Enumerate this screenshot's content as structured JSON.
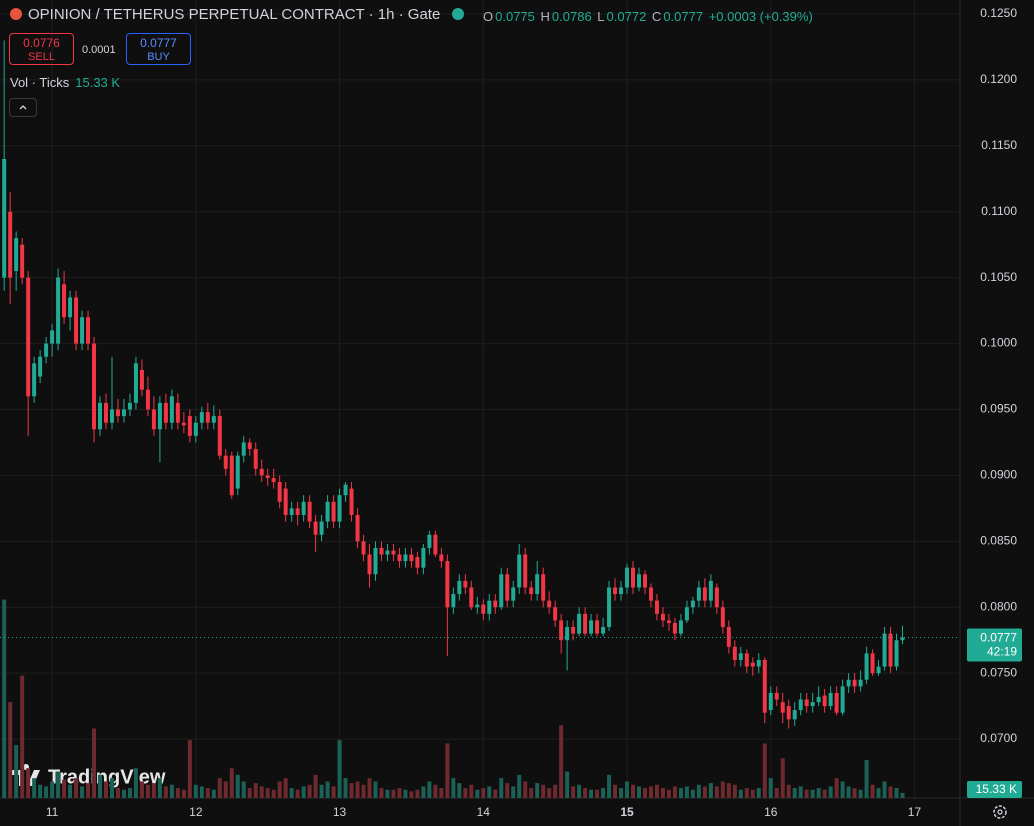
{
  "header": {
    "title": "OPINION / TETHERUS PERPETUAL CONTRACT · 1h · Gate",
    "ohlc": [
      {
        "key": "O",
        "value": "0.0775"
      },
      {
        "key": "H",
        "value": "0.0786"
      },
      {
        "key": "L",
        "value": "0.0772"
      },
      {
        "key": "C",
        "value": "0.0777"
      }
    ],
    "change": "+0.0003 (+0.39%)",
    "sell": {
      "price": "0.0776",
      "label": "SELL"
    },
    "spread": "0.0001",
    "buy": {
      "price": "0.0777",
      "label": "BUY"
    },
    "volume_legend": "Vol · Ticks"
  },
  "chart_data": {
    "type": "candlestick",
    "up_color": "#22ab94",
    "down_color": "#f23645",
    "volume_up_color": "#1c6157",
    "volume_down_color": "#6e2a2f",
    "grid": true,
    "xlim": [
      255.3,
      415.6
    ],
    "xticks": [
      {
        "value": 264,
        "label": "11"
      },
      {
        "value": 288,
        "label": "12"
      },
      {
        "value": 312,
        "label": "13"
      },
      {
        "value": 336,
        "label": "14"
      },
      {
        "value": 360,
        "label": "15"
      },
      {
        "value": 384,
        "label": "16"
      },
      {
        "value": 408,
        "label": "17"
      }
    ],
    "ylim": [
      0.06553,
      0.12606
    ],
    "yticks": [
      {
        "value": 0.07,
        "label": "0.0700"
      },
      {
        "value": 0.075,
        "label": "0.0750"
      },
      {
        "value": 0.08,
        "label": "0.0800"
      },
      {
        "value": 0.085,
        "label": "0.0850"
      },
      {
        "value": 0.09,
        "label": "0.0900"
      },
      {
        "value": 0.095,
        "label": "0.0950"
      },
      {
        "value": 0.1,
        "label": "0.1000"
      },
      {
        "value": 0.105,
        "label": "0.1050"
      },
      {
        "value": 0.11,
        "label": "0.1100"
      },
      {
        "value": 0.115,
        "label": "0.1150"
      },
      {
        "value": 0.12,
        "label": "0.1200"
      },
      {
        "value": 0.125,
        "label": "0.1250"
      }
    ],
    "volume_lim": [
      0,
      780000
    ],
    "last_price_label": "0.0777",
    "countdown": "42:19",
    "last_volume_label": "15.33 K",
    "watermark": "TradingView",
    "x": [
      256,
      257,
      258,
      259,
      260,
      261,
      262,
      263,
      264,
      265,
      266,
      267,
      268,
      269,
      270,
      271,
      272,
      273,
      274,
      275,
      276,
      277,
      278,
      279,
      280,
      281,
      282,
      283,
      284,
      285,
      286,
      287,
      288,
      289,
      290,
      291,
      292,
      293,
      294,
      295,
      296,
      297,
      298,
      299,
      300,
      301,
      302,
      303,
      304,
      305,
      306,
      307,
      308,
      309,
      310,
      311,
      312,
      313,
      314,
      315,
      316,
      317,
      318,
      319,
      320,
      321,
      322,
      323,
      324,
      325,
      326,
      327,
      328,
      329,
      330,
      331,
      332,
      333,
      334,
      335,
      336,
      337,
      338,
      339,
      340,
      341,
      342,
      343,
      344,
      345,
      346,
      347,
      348,
      349,
      350,
      351,
      352,
      353,
      354,
      355,
      356,
      357,
      358,
      359,
      360,
      361,
      362,
      363,
      364,
      365,
      366,
      367,
      368,
      369,
      370,
      371,
      372,
      373,
      374,
      375,
      376,
      377,
      378,
      379,
      380,
      381,
      382,
      383,
      384,
      385,
      386,
      387,
      388,
      389,
      390,
      391,
      392,
      393,
      394,
      395,
      396,
      397,
      398,
      399,
      400,
      401,
      402,
      403,
      404,
      405,
      406
    ],
    "ohlcv": [
      [
        0.105,
        0.123,
        0.104,
        0.114,
        600000
      ],
      [
        0.11,
        0.1115,
        0.103,
        0.105,
        290000
      ],
      [
        0.1055,
        0.1085,
        0.104,
        0.108,
        160000
      ],
      [
        0.1075,
        0.108,
        0.1045,
        0.105,
        370000
      ],
      [
        0.105,
        0.1055,
        0.093,
        0.096,
        90000
      ],
      [
        0.096,
        0.099,
        0.0955,
        0.0985,
        60000
      ],
      [
        0.0975,
        0.0995,
        0.097,
        0.099,
        40000
      ],
      [
        0.099,
        0.1005,
        0.0985,
        0.1,
        35000
      ],
      [
        0.1,
        0.1015,
        0.099,
        0.101,
        50000
      ],
      [
        0.1,
        0.1057,
        0.0995,
        0.105,
        80000
      ],
      [
        0.1045,
        0.1055,
        0.1015,
        0.102,
        55000
      ],
      [
        0.102,
        0.104,
        0.101,
        0.1035,
        40000
      ],
      [
        0.1035,
        0.104,
        0.0995,
        0.1,
        60000
      ],
      [
        0.1,
        0.1025,
        0.0995,
        0.102,
        35000
      ],
      [
        0.102,
        0.1025,
        0.0995,
        0.1,
        45000
      ],
      [
        0.1,
        0.1005,
        0.0925,
        0.0935,
        210000
      ],
      [
        0.0935,
        0.096,
        0.093,
        0.0955,
        70000
      ],
      [
        0.0955,
        0.0962,
        0.0935,
        0.094,
        50000
      ],
      [
        0.094,
        0.099,
        0.0935,
        0.095,
        60000
      ],
      [
        0.095,
        0.0958,
        0.094,
        0.0945,
        30000
      ],
      [
        0.0945,
        0.0958,
        0.094,
        0.095,
        25000
      ],
      [
        0.095,
        0.0962,
        0.0945,
        0.0955,
        30000
      ],
      [
        0.0955,
        0.099,
        0.095,
        0.0985,
        90000
      ],
      [
        0.098,
        0.0988,
        0.096,
        0.0965,
        50000
      ],
      [
        0.0965,
        0.0975,
        0.0945,
        0.095,
        40000
      ],
      [
        0.095,
        0.096,
        0.093,
        0.0935,
        45000
      ],
      [
        0.0935,
        0.096,
        0.091,
        0.0955,
        60000
      ],
      [
        0.0955,
        0.0962,
        0.0935,
        0.094,
        35000
      ],
      [
        0.094,
        0.0965,
        0.0935,
        0.096,
        40000
      ],
      [
        0.0955,
        0.0962,
        0.0935,
        0.094,
        30000
      ],
      [
        0.094,
        0.0948,
        0.0932,
        0.0938,
        25000
      ],
      [
        0.0945,
        0.095,
        0.0925,
        0.093,
        175000
      ],
      [
        0.093,
        0.0945,
        0.0925,
        0.094,
        40000
      ],
      [
        0.094,
        0.0952,
        0.0935,
        0.0948,
        35000
      ],
      [
        0.0948,
        0.0955,
        0.0935,
        0.094,
        30000
      ],
      [
        0.094,
        0.0953,
        0.0935,
        0.0945,
        25000
      ],
      [
        0.0945,
        0.095,
        0.0912,
        0.0915,
        60000
      ],
      [
        0.0915,
        0.092,
        0.09,
        0.0905,
        50000
      ],
      [
        0.0915,
        0.0918,
        0.0882,
        0.0885,
        90000
      ],
      [
        0.089,
        0.0918,
        0.0885,
        0.0915,
        70000
      ],
      [
        0.0915,
        0.093,
        0.091,
        0.0925,
        50000
      ],
      [
        0.0925,
        0.0928,
        0.0915,
        0.092,
        30000
      ],
      [
        0.092,
        0.0925,
        0.09,
        0.0905,
        45000
      ],
      [
        0.0905,
        0.0912,
        0.0895,
        0.09,
        35000
      ],
      [
        0.09,
        0.0905,
        0.0892,
        0.0898,
        30000
      ],
      [
        0.0898,
        0.0905,
        0.089,
        0.0895,
        25000
      ],
      [
        0.0895,
        0.09,
        0.0875,
        0.088,
        50000
      ],
      [
        0.089,
        0.0895,
        0.0865,
        0.087,
        60000
      ],
      [
        0.087,
        0.088,
        0.0865,
        0.0875,
        30000
      ],
      [
        0.0875,
        0.088,
        0.0862,
        0.087,
        25000
      ],
      [
        0.087,
        0.0885,
        0.0865,
        0.088,
        35000
      ],
      [
        0.088,
        0.0885,
        0.086,
        0.0865,
        40000
      ],
      [
        0.0865,
        0.087,
        0.0842,
        0.0855,
        70000
      ],
      [
        0.0855,
        0.087,
        0.085,
        0.0865,
        40000
      ],
      [
        0.0865,
        0.0885,
        0.086,
        0.088,
        50000
      ],
      [
        0.088,
        0.0885,
        0.086,
        0.0865,
        35000
      ],
      [
        0.0865,
        0.089,
        0.086,
        0.0885,
        175000
      ],
      [
        0.0885,
        0.0895,
        0.088,
        0.0893,
        60000
      ],
      [
        0.089,
        0.0895,
        0.0865,
        0.087,
        45000
      ],
      [
        0.087,
        0.0875,
        0.0845,
        0.085,
        50000
      ],
      [
        0.085,
        0.0855,
        0.0835,
        0.084,
        40000
      ],
      [
        0.084,
        0.0848,
        0.0815,
        0.0825,
        60000
      ],
      [
        0.0825,
        0.085,
        0.082,
        0.0845,
        50000
      ],
      [
        0.0845,
        0.085,
        0.0835,
        0.084,
        30000
      ],
      [
        0.084,
        0.0848,
        0.0835,
        0.0843,
        25000
      ],
      [
        0.0843,
        0.0848,
        0.0835,
        0.084,
        25000
      ],
      [
        0.084,
        0.0845,
        0.083,
        0.0835,
        30000
      ],
      [
        0.0835,
        0.0845,
        0.083,
        0.084,
        25000
      ],
      [
        0.084,
        0.0845,
        0.083,
        0.0835,
        20000
      ],
      [
        0.0838,
        0.0842,
        0.0825,
        0.083,
        25000
      ],
      [
        0.083,
        0.0848,
        0.0825,
        0.0845,
        35000
      ],
      [
        0.0845,
        0.0858,
        0.084,
        0.0855,
        50000
      ],
      [
        0.0855,
        0.0858,
        0.0838,
        0.084,
        40000
      ],
      [
        0.084,
        0.0845,
        0.083,
        0.0835,
        30000
      ],
      [
        0.0835,
        0.084,
        0.0763,
        0.08,
        165000
      ],
      [
        0.08,
        0.0815,
        0.0795,
        0.081,
        60000
      ],
      [
        0.081,
        0.0825,
        0.0805,
        0.082,
        45000
      ],
      [
        0.082,
        0.0825,
        0.081,
        0.0815,
        30000
      ],
      [
        0.0815,
        0.082,
        0.0798,
        0.08,
        40000
      ],
      [
        0.08,
        0.0808,
        0.0795,
        0.0802,
        25000
      ],
      [
        0.0802,
        0.0806,
        0.079,
        0.0795,
        30000
      ],
      [
        0.0795,
        0.081,
        0.079,
        0.0805,
        35000
      ],
      [
        0.0805,
        0.081,
        0.0795,
        0.08,
        25000
      ],
      [
        0.08,
        0.083,
        0.0798,
        0.0825,
        60000
      ],
      [
        0.0825,
        0.083,
        0.08,
        0.0805,
        45000
      ],
      [
        0.0805,
        0.082,
        0.08,
        0.0815,
        35000
      ],
      [
        0.0815,
        0.0848,
        0.081,
        0.084,
        70000
      ],
      [
        0.084,
        0.0845,
        0.081,
        0.0815,
        50000
      ],
      [
        0.0815,
        0.082,
        0.0805,
        0.081,
        30000
      ],
      [
        0.081,
        0.0835,
        0.0805,
        0.0825,
        45000
      ],
      [
        0.0825,
        0.083,
        0.08,
        0.0805,
        40000
      ],
      [
        0.0805,
        0.0812,
        0.0795,
        0.08,
        30000
      ],
      [
        0.08,
        0.0805,
        0.0785,
        0.079,
        40000
      ],
      [
        0.079,
        0.0795,
        0.0765,
        0.0775,
        220000
      ],
      [
        0.0775,
        0.079,
        0.0752,
        0.0785,
        80000
      ],
      [
        0.0785,
        0.079,
        0.0775,
        0.078,
        35000
      ],
      [
        0.078,
        0.08,
        0.0778,
        0.0795,
        40000
      ],
      [
        0.0795,
        0.08,
        0.0778,
        0.078,
        30000
      ],
      [
        0.078,
        0.0795,
        0.0778,
        0.079,
        25000
      ],
      [
        0.079,
        0.0795,
        0.0778,
        0.078,
        25000
      ],
      [
        0.078,
        0.0792,
        0.0778,
        0.0785,
        30000
      ],
      [
        0.0785,
        0.082,
        0.0782,
        0.0815,
        70000
      ],
      [
        0.0815,
        0.0822,
        0.0805,
        0.081,
        40000
      ],
      [
        0.081,
        0.082,
        0.0805,
        0.0815,
        30000
      ],
      [
        0.0815,
        0.0833,
        0.081,
        0.083,
        50000
      ],
      [
        0.083,
        0.0835,
        0.081,
        0.0815,
        40000
      ],
      [
        0.0815,
        0.083,
        0.0812,
        0.0825,
        35000
      ],
      [
        0.0825,
        0.0828,
        0.081,
        0.0815,
        30000
      ],
      [
        0.0815,
        0.0818,
        0.08,
        0.0805,
        35000
      ],
      [
        0.0805,
        0.081,
        0.079,
        0.0795,
        40000
      ],
      [
        0.0795,
        0.08,
        0.0785,
        0.079,
        30000
      ],
      [
        0.079,
        0.0795,
        0.0782,
        0.0788,
        25000
      ],
      [
        0.0788,
        0.0792,
        0.0775,
        0.078,
        35000
      ],
      [
        0.078,
        0.0795,
        0.0778,
        0.079,
        30000
      ],
      [
        0.079,
        0.0805,
        0.0788,
        0.08,
        35000
      ],
      [
        0.08,
        0.0808,
        0.0795,
        0.0805,
        25000
      ],
      [
        0.0805,
        0.082,
        0.08,
        0.0815,
        40000
      ],
      [
        0.0815,
        0.0822,
        0.08,
        0.0805,
        35000
      ],
      [
        0.0805,
        0.0825,
        0.08,
        0.082,
        45000
      ],
      [
        0.0815,
        0.0818,
        0.0795,
        0.08,
        35000
      ],
      [
        0.08,
        0.0805,
        0.078,
        0.0785,
        50000
      ],
      [
        0.0785,
        0.079,
        0.0765,
        0.077,
        45000
      ],
      [
        0.077,
        0.0775,
        0.0755,
        0.076,
        40000
      ],
      [
        0.076,
        0.077,
        0.0755,
        0.0765,
        25000
      ],
      [
        0.0765,
        0.0768,
        0.075,
        0.0755,
        30000
      ],
      [
        0.0758,
        0.0762,
        0.0748,
        0.0755,
        25000
      ],
      [
        0.0755,
        0.0765,
        0.075,
        0.076,
        30000
      ],
      [
        0.076,
        0.0762,
        0.0712,
        0.072,
        165000
      ],
      [
        0.0722,
        0.074,
        0.0718,
        0.0735,
        60000
      ],
      [
        0.0735,
        0.074,
        0.0725,
        0.073,
        30000
      ],
      [
        0.0728,
        0.0735,
        0.0712,
        0.072,
        120000
      ],
      [
        0.0725,
        0.073,
        0.0708,
        0.0715,
        40000
      ],
      [
        0.0715,
        0.0728,
        0.071,
        0.0722,
        30000
      ],
      [
        0.0722,
        0.0735,
        0.0718,
        0.073,
        35000
      ],
      [
        0.073,
        0.0735,
        0.072,
        0.0725,
        25000
      ],
      [
        0.0725,
        0.0735,
        0.072,
        0.0728,
        25000
      ],
      [
        0.0728,
        0.074,
        0.0725,
        0.0732,
        30000
      ],
      [
        0.0733,
        0.0738,
        0.072,
        0.0725,
        25000
      ],
      [
        0.0725,
        0.074,
        0.0722,
        0.0735,
        35000
      ],
      [
        0.0735,
        0.074,
        0.0718,
        0.072,
        60000
      ],
      [
        0.072,
        0.0745,
        0.0718,
        0.074,
        50000
      ],
      [
        0.074,
        0.075,
        0.0735,
        0.0745,
        35000
      ],
      [
        0.0745,
        0.075,
        0.0735,
        0.074,
        30000
      ],
      [
        0.074,
        0.0752,
        0.0736,
        0.0745,
        25000
      ],
      [
        0.0745,
        0.077,
        0.0742,
        0.0765,
        115000
      ],
      [
        0.0765,
        0.0768,
        0.0748,
        0.075,
        40000
      ],
      [
        0.075,
        0.076,
        0.0748,
        0.0755,
        30000
      ],
      [
        0.0755,
        0.0785,
        0.0752,
        0.078,
        50000
      ],
      [
        0.078,
        0.0785,
        0.075,
        0.0755,
        35000
      ],
      [
        0.0755,
        0.078,
        0.0752,
        0.0775,
        30000
      ],
      [
        0.0775,
        0.0786,
        0.0772,
        0.0777,
        15330
      ]
    ]
  }
}
